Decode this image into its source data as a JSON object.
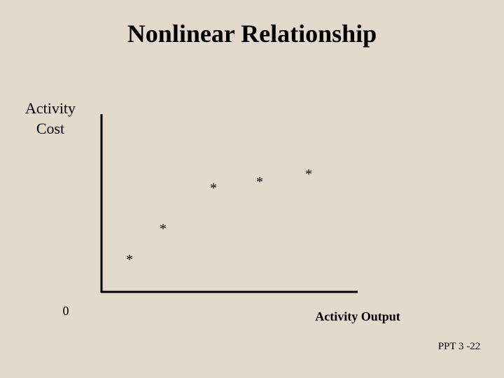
{
  "slide": {
    "title": "Nonlinear Relationship",
    "y_axis_label": [
      "Activity",
      "Cost"
    ],
    "x_axis_label": "Activity Output",
    "origin_label": "0",
    "points": [
      "*",
      "*",
      "*",
      "*",
      "*"
    ],
    "footer": "PPT 3 -22"
  }
}
